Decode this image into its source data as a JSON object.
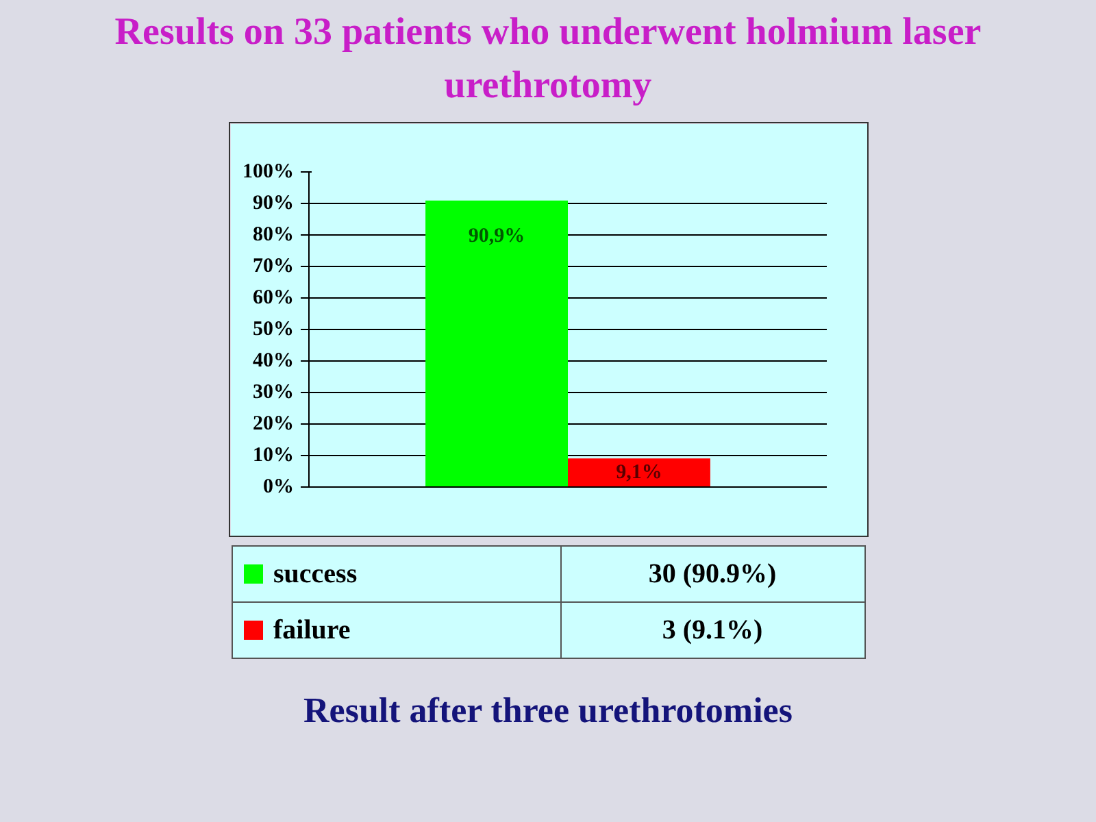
{
  "chart_data": {
    "type": "bar",
    "title": "Results on 33 patients who underwent holmium laser urethrotomy",
    "categories": [
      null
    ],
    "series": [
      {
        "name": "success",
        "color": "#00ff00",
        "values": [
          90.9
        ],
        "value_labels": [
          "90,9%"
        ]
      },
      {
        "name": "failure",
        "color": "#ff0000",
        "values": [
          9.1
        ],
        "value_labels": [
          "9,1%"
        ]
      }
    ],
    "ylim": [
      0,
      100
    ],
    "yticks": [
      {
        "value": 0,
        "label": "0%"
      },
      {
        "value": 10,
        "label": "10%"
      },
      {
        "value": 20,
        "label": "20%"
      },
      {
        "value": 30,
        "label": "30%"
      },
      {
        "value": 40,
        "label": "40%"
      },
      {
        "value": 50,
        "label": "50%"
      },
      {
        "value": 60,
        "label": "60%"
      },
      {
        "value": 70,
        "label": "70%"
      },
      {
        "value": 80,
        "label": "80%"
      },
      {
        "value": 90,
        "label": "90%"
      },
      {
        "value": 100,
        "label": "100%"
      }
    ],
    "grid": "y",
    "legend": "bottom",
    "tick_labels": "y",
    "annotations": [
      "30 (90.9%)",
      "3 (9.1%)",
      "Result after three urethrotomies"
    ]
  }
}
